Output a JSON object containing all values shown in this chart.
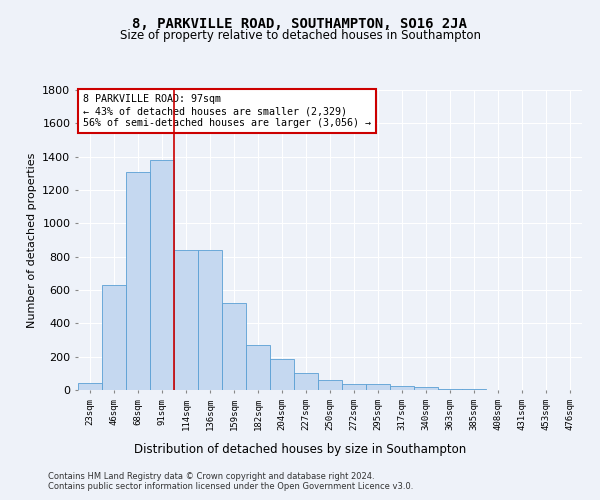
{
  "title": "8, PARKVILLE ROAD, SOUTHAMPTON, SO16 2JA",
  "subtitle": "Size of property relative to detached houses in Southampton",
  "xlabel": "Distribution of detached houses by size in Southampton",
  "ylabel": "Number of detached properties",
  "categories": [
    "23sqm",
    "46sqm",
    "68sqm",
    "91sqm",
    "114sqm",
    "136sqm",
    "159sqm",
    "182sqm",
    "204sqm",
    "227sqm",
    "250sqm",
    "272sqm",
    "295sqm",
    "317sqm",
    "340sqm",
    "363sqm",
    "385sqm",
    "408sqm",
    "431sqm",
    "453sqm",
    "476sqm"
  ],
  "values": [
    40,
    630,
    1310,
    1380,
    840,
    840,
    525,
    270,
    185,
    100,
    60,
    35,
    35,
    25,
    20,
    5,
    5,
    0,
    0,
    0,
    0
  ],
  "bar_color": "#c5d8f0",
  "bar_edge_color": "#5a9fd4",
  "background_color": "#eef2f9",
  "grid_color": "#ffffff",
  "annotation_box_text": "8 PARKVILLE ROAD: 97sqm\n← 43% of detached houses are smaller (2,329)\n56% of semi-detached houses are larger (3,056) →",
  "annotation_box_color": "#ffffff",
  "annotation_box_edge_color": "#cc0000",
  "property_line_color": "#cc0000",
  "ylim": [
    0,
    1800
  ],
  "yticks": [
    0,
    200,
    400,
    600,
    800,
    1000,
    1200,
    1400,
    1600,
    1800
  ],
  "footer_line1": "Contains HM Land Registry data © Crown copyright and database right 2024.",
  "footer_line2": "Contains public sector information licensed under the Open Government Licence v3.0."
}
